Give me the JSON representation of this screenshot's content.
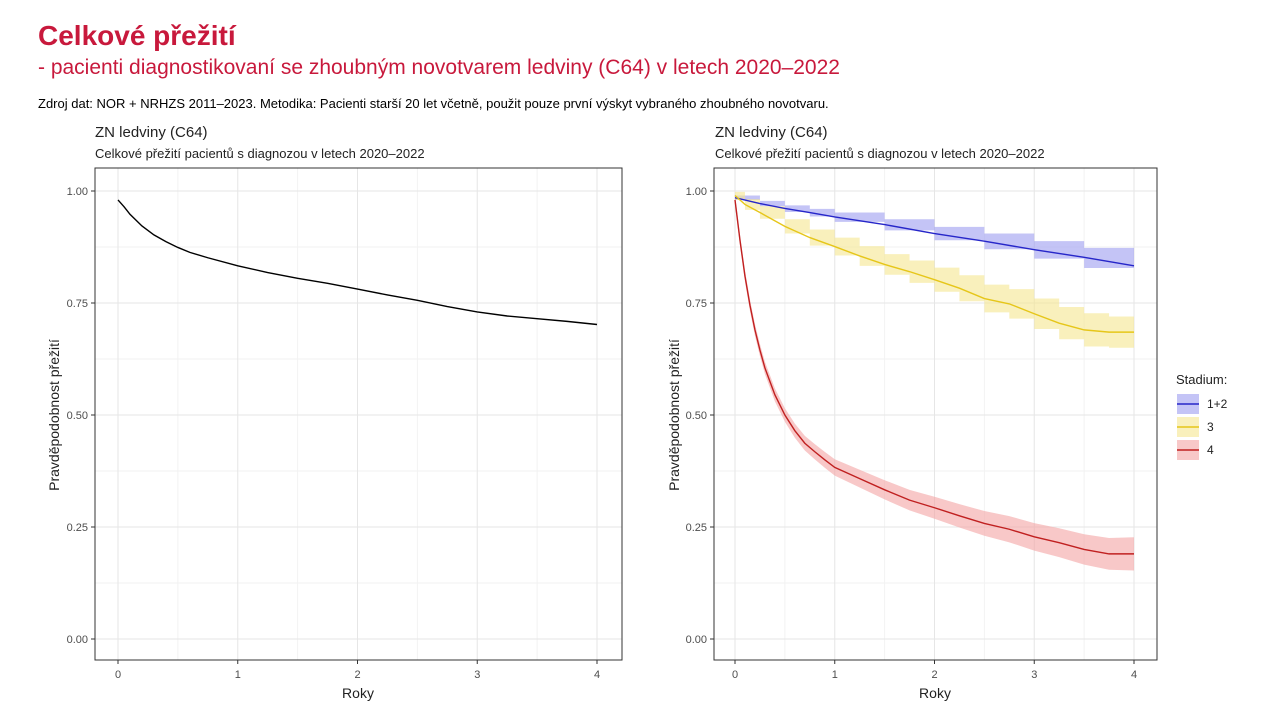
{
  "page": {
    "title": "Celkové přežití",
    "subtitle": "- pacienti diagnostikovaní se zhoubným novotvarem ledviny (C64) v letech 2020–2022",
    "source": "Zdroj dat: NOR + NRHZS 2011–2023. Metodika: Pacienti starší 20 let včetně, použit pouze první výskyt vybraného zhoubného novotvaru."
  },
  "chart_data": [
    {
      "type": "line",
      "title": "ZN ledviny (C64)",
      "subtitle": "Celkové přežití pacientů s diagnozou v letech 2020–2022",
      "xlabel": "Roky",
      "ylabel": "Pravděpodobnost přežití",
      "xlim": [
        0,
        4
      ],
      "ylim": [
        0,
        1
      ],
      "xticks": [
        "0",
        "1",
        "2",
        "3",
        "4"
      ],
      "yticks": [
        "0.00",
        "0.25",
        "0.50",
        "0.75",
        "1.00"
      ],
      "grid": true,
      "series": [
        {
          "color": "#000000",
          "x": [
            0,
            0.05,
            0.1,
            0.15,
            0.2,
            0.3,
            0.4,
            0.5,
            0.6,
            0.75,
            1.0,
            1.25,
            1.5,
            1.75,
            2.0,
            2.25,
            2.5,
            2.75,
            3.0,
            3.25,
            3.5,
            3.75,
            4.0
          ],
          "y": [
            0.98,
            0.965,
            0.948,
            0.935,
            0.922,
            0.902,
            0.887,
            0.874,
            0.863,
            0.851,
            0.833,
            0.818,
            0.805,
            0.794,
            0.781,
            0.768,
            0.756,
            0.742,
            0.73,
            0.721,
            0.715,
            0.709,
            0.702
          ]
        }
      ]
    },
    {
      "type": "line",
      "title": "ZN ledviny (C64)",
      "subtitle": "Celkové přežití pacientů s diagnozou v letech 2020–2022",
      "xlabel": "Roky",
      "ylabel": "Pravděpodobnost přežití",
      "xlim": [
        0,
        4
      ],
      "ylim": [
        0,
        1
      ],
      "xticks": [
        "0",
        "1",
        "2",
        "3",
        "4"
      ],
      "yticks": [
        "0.00",
        "0.25",
        "0.50",
        "0.75",
        "1.00"
      ],
      "grid": true,
      "legend": {
        "title": "Stadium:",
        "position": "right"
      },
      "series": [
        {
          "name": "1+2",
          "color": "#2626c9",
          "band_color": "#9d9df0",
          "x": [
            0,
            0.25,
            0.5,
            0.75,
            1.0,
            1.5,
            2.0,
            2.5,
            3.0,
            3.5,
            4.0
          ],
          "y": [
            0.985,
            0.972,
            0.961,
            0.952,
            0.942,
            0.925,
            0.905,
            0.888,
            0.869,
            0.852,
            0.833
          ],
          "lower": [
            0.98,
            0.966,
            0.953,
            0.943,
            0.931,
            0.912,
            0.89,
            0.87,
            0.849,
            0.828,
            0.815
          ],
          "upper": [
            0.99,
            0.978,
            0.968,
            0.96,
            0.952,
            0.937,
            0.92,
            0.905,
            0.888,
            0.873,
            0.858
          ]
        },
        {
          "name": "3",
          "color": "#e6c619",
          "band_color": "#f5e68f",
          "x": [
            0,
            0.1,
            0.25,
            0.5,
            0.75,
            1.0,
            1.25,
            1.5,
            1.75,
            2.0,
            2.25,
            2.5,
            2.75,
            3.0,
            3.25,
            3.5,
            3.75,
            4.0
          ],
          "y": [
            0.99,
            0.97,
            0.952,
            0.921,
            0.896,
            0.876,
            0.855,
            0.836,
            0.82,
            0.802,
            0.783,
            0.76,
            0.748,
            0.726,
            0.705,
            0.69,
            0.685,
            0.685
          ],
          "lower": [
            0.98,
            0.958,
            0.938,
            0.905,
            0.878,
            0.856,
            0.833,
            0.813,
            0.795,
            0.775,
            0.754,
            0.729,
            0.715,
            0.692,
            0.669,
            0.653,
            0.65,
            0.65
          ],
          "upper": [
            0.998,
            0.982,
            0.966,
            0.937,
            0.914,
            0.896,
            0.877,
            0.859,
            0.845,
            0.829,
            0.812,
            0.791,
            0.781,
            0.76,
            0.741,
            0.727,
            0.72,
            0.72
          ]
        },
        {
          "name": "4",
          "color": "#c02020",
          "band_color": "#f3a3a3",
          "x": [
            0,
            0.05,
            0.1,
            0.15,
            0.2,
            0.25,
            0.3,
            0.4,
            0.5,
            0.6,
            0.7,
            0.8,
            0.9,
            1.0,
            1.25,
            1.5,
            1.75,
            2.0,
            2.25,
            2.5,
            2.75,
            3.0,
            3.25,
            3.5,
            3.75,
            4.0
          ],
          "y": [
            0.98,
            0.89,
            0.81,
            0.745,
            0.69,
            0.645,
            0.605,
            0.545,
            0.5,
            0.465,
            0.437,
            0.418,
            0.4,
            0.383,
            0.358,
            0.333,
            0.31,
            0.293,
            0.275,
            0.258,
            0.245,
            0.228,
            0.215,
            0.2,
            0.19,
            0.19
          ]
        }
      ]
    }
  ]
}
